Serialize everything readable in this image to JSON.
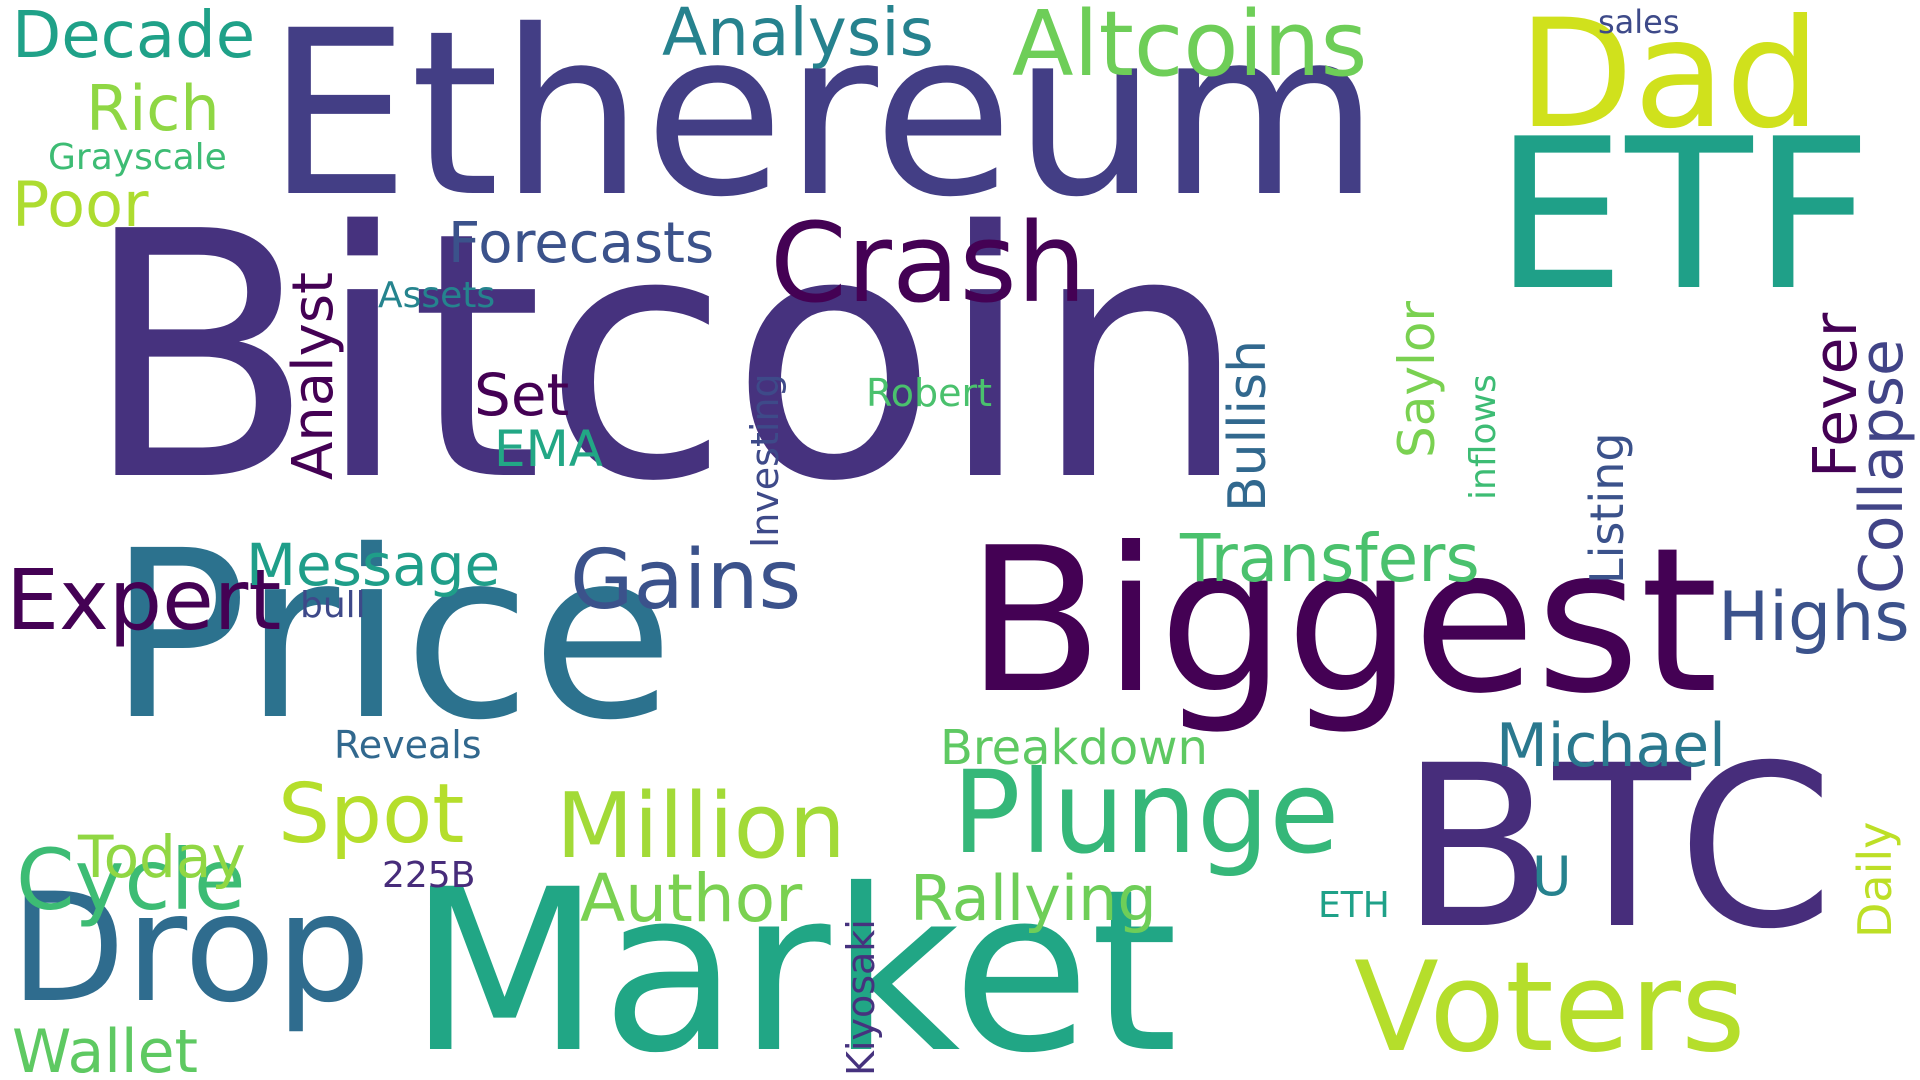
{
  "words": [
    {
      "text": "Bitcoin",
      "color": "#46327e"
    },
    {
      "text": "Ethereum",
      "color": "#433e85"
    },
    {
      "text": "Price",
      "color": "#2c728e"
    },
    {
      "text": "Biggest",
      "color": "#440154"
    },
    {
      "text": "Market",
      "color": "#21a685"
    },
    {
      "text": "BTC",
      "color": "#472d7b"
    },
    {
      "text": "ETF",
      "color": "#1fa088"
    },
    {
      "text": "Voters",
      "color": "#b5de2b"
    },
    {
      "text": "Dad",
      "color": "#d0e11c"
    },
    {
      "text": "Drop",
      "color": "#2f6c8e"
    },
    {
      "text": "Crash",
      "color": "#440154"
    },
    {
      "text": "Plunge",
      "color": "#35b779"
    },
    {
      "text": "Million",
      "color": "#a2da37"
    },
    {
      "text": "Altcoins",
      "color": "#6ece58"
    },
    {
      "text": "Gains",
      "color": "#3b528b"
    },
    {
      "text": "Spot",
      "color": "#b5de2b"
    },
    {
      "text": "Expert",
      "color": "#440154"
    },
    {
      "text": "Cycle",
      "color": "#3dbc74"
    },
    {
      "text": "Transfers",
      "color": "#4ac16d"
    },
    {
      "text": "Analysis",
      "color": "#26828e"
    },
    {
      "text": "Decade",
      "color": "#1fa188"
    },
    {
      "text": "Michael",
      "color": "#2a788e"
    },
    {
      "text": "Author",
      "color": "#7ad151"
    },
    {
      "text": "Rallying",
      "color": "#6ece58"
    },
    {
      "text": "Wallet",
      "color": "#5ec962"
    },
    {
      "text": "Highs",
      "color": "#3b528b"
    },
    {
      "text": "Collapse",
      "color": "#414487"
    },
    {
      "text": "Analyst",
      "color": "#440154"
    },
    {
      "text": "Forecasts",
      "color": "#3b528b"
    },
    {
      "text": "Breakdown",
      "color": "#5ec962"
    },
    {
      "text": "Poor",
      "color": "#addc30"
    },
    {
      "text": "Message",
      "color": "#1f9e89"
    },
    {
      "text": "Rich",
      "color": "#8fd744"
    },
    {
      "text": "Fever",
      "color": "#440154"
    },
    {
      "text": "Today",
      "color": "#90d743"
    },
    {
      "text": "Bullish",
      "color": "#31688e"
    },
    {
      "text": "Saylor",
      "color": "#7ad151"
    },
    {
      "text": "Set",
      "color": "#440154"
    },
    {
      "text": "Daily",
      "color": "#bddf26"
    },
    {
      "text": "Listing",
      "color": "#3b528b"
    },
    {
      "text": "EMA",
      "color": "#22a785"
    },
    {
      "text": "U",
      "color": "#26828e"
    },
    {
      "text": "Investing",
      "color": "#3e4a89"
    },
    {
      "text": "Kiyosaki",
      "color": "#46327e"
    },
    {
      "text": "Grayscale",
      "color": "#3dbc74"
    },
    {
      "text": "Reveals",
      "color": "#31688e"
    },
    {
      "text": "Robert",
      "color": "#4ac16d"
    },
    {
      "text": "Assets",
      "color": "#25848e"
    },
    {
      "text": "bull",
      "color": "#3e4989"
    },
    {
      "text": "inflows",
      "color": "#3dbc74"
    },
    {
      "text": "225B",
      "color": "#472c7a"
    },
    {
      "text": "ETH",
      "color": "#1fa188"
    },
    {
      "text": "sales",
      "color": "#3e4a89"
    }
  ]
}
